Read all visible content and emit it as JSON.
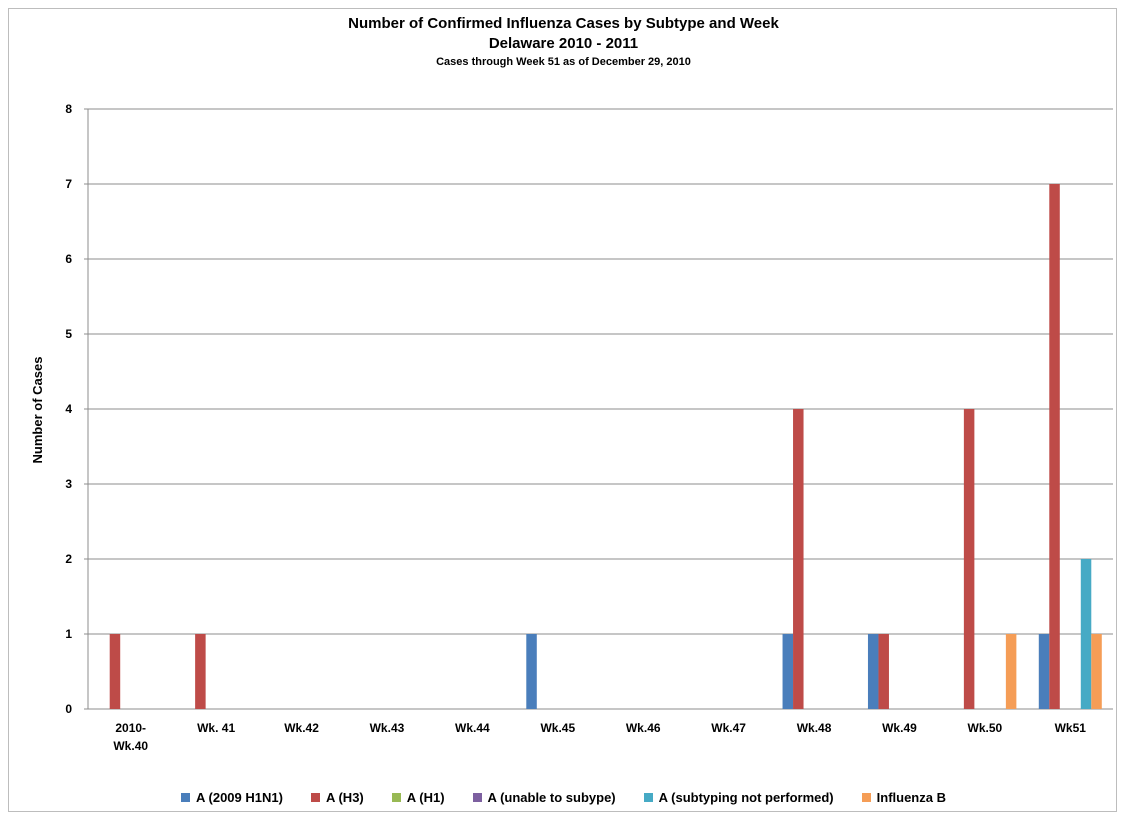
{
  "chart_data": {
    "type": "bar",
    "title": "Number of Confirmed Influenza Cases by Subtype  and Week",
    "subtitle": "Delaware 2010 - 2011",
    "note": "Cases through Week 51 as of December 29, 2010",
    "xlabel": "",
    "ylabel": "Number of Cases",
    "ylim": [
      0,
      8
    ],
    "yticks": [
      "0",
      "1",
      "2",
      "3",
      "4",
      "5",
      "6",
      "7",
      "8"
    ],
    "grid": true,
    "legend_position": "bottom",
    "categories": [
      [
        "2010-",
        "Wk.40"
      ],
      [
        "Wk. 41"
      ],
      [
        "Wk.42"
      ],
      [
        "Wk.43"
      ],
      [
        "Wk.44"
      ],
      [
        "Wk.45"
      ],
      [
        "Wk.46"
      ],
      [
        "Wk.47"
      ],
      [
        "Wk.48"
      ],
      [
        "Wk.49"
      ],
      [
        "Wk.50"
      ],
      [
        "Wk51"
      ]
    ],
    "series": [
      {
        "name": "A (2009 H1N1)",
        "color": "#4a7ebb",
        "values": [
          0,
          0,
          0,
          0,
          0,
          1,
          0,
          0,
          1,
          1,
          0,
          1
        ]
      },
      {
        "name": "A (H3)",
        "color": "#be4b48",
        "values": [
          1,
          1,
          0,
          0,
          0,
          0,
          0,
          0,
          4,
          1,
          4,
          7
        ]
      },
      {
        "name": "A (H1)",
        "color": "#98b954",
        "values": [
          0,
          0,
          0,
          0,
          0,
          0,
          0,
          0,
          0,
          0,
          0,
          0
        ]
      },
      {
        "name": "A (unable to subype)",
        "color": "#7d60a0",
        "values": [
          0,
          0,
          0,
          0,
          0,
          0,
          0,
          0,
          0,
          0,
          0,
          0
        ]
      },
      {
        "name": "A (subtyping not performed)",
        "color": "#46aac5",
        "values": [
          0,
          0,
          0,
          0,
          0,
          0,
          0,
          0,
          0,
          0,
          0,
          2
        ]
      },
      {
        "name": "Influenza B",
        "color": "#f59d56",
        "values": [
          0,
          0,
          0,
          0,
          0,
          0,
          0,
          0,
          0,
          0,
          1,
          1
        ]
      }
    ]
  }
}
